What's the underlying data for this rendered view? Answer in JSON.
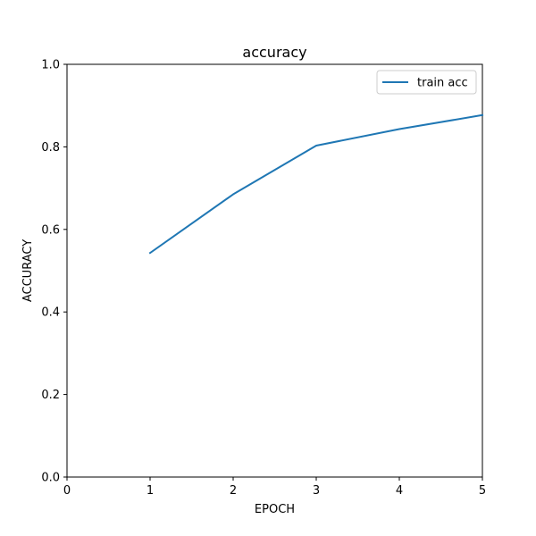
{
  "chart_data": {
    "type": "line",
    "title": "accuracy",
    "xlabel": "EPOCH",
    "ylabel": "ACCURACY",
    "xlim": [
      0,
      5
    ],
    "ylim": [
      0.0,
      1.0
    ],
    "xticks": [
      0,
      1,
      2,
      3,
      4,
      5
    ],
    "xtick_labels": [
      "0",
      "1",
      "2",
      "3",
      "4",
      "5"
    ],
    "yticks": [
      0.0,
      0.2,
      0.4,
      0.6,
      0.8,
      1.0
    ],
    "ytick_labels": [
      "0.0",
      "0.2",
      "0.4",
      "0.6",
      "0.8",
      "1.0"
    ],
    "grid": false,
    "legend_position": "top-right",
    "x": [
      1,
      2,
      3,
      4,
      5
    ],
    "series": [
      {
        "name": "train acc",
        "color": "#1f77b4",
        "values": [
          0.543,
          0.685,
          0.803,
          0.843,
          0.877
        ]
      }
    ]
  }
}
